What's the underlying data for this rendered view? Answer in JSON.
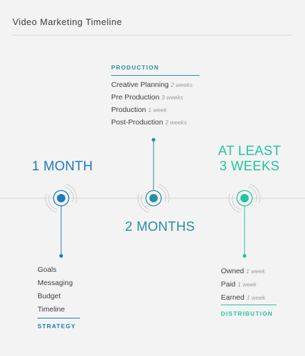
{
  "title": "Video Marketing Timeline",
  "colors": {
    "strategy": "#1a7bbf",
    "production": "#2a8da6",
    "distribution": "#22c4a0",
    "timeline": "#d6d6d6",
    "ring": "#cfcfcf"
  },
  "stages": [
    {
      "key": "strategy",
      "duration": [
        "1 MONTH"
      ],
      "label": "STRATEGY",
      "items": [
        {
          "name": "Goals",
          "duration": ""
        },
        {
          "name": "Messaging",
          "duration": ""
        },
        {
          "name": "Budget",
          "duration": ""
        },
        {
          "name": "Timeline",
          "duration": ""
        }
      ]
    },
    {
      "key": "production",
      "duration": [
        "2 MONTHS"
      ],
      "label": "PRODUCTION",
      "items": [
        {
          "name": "Creative Planning",
          "duration": "2 weeks"
        },
        {
          "name": "Pre Production",
          "duration": "3 weeks"
        },
        {
          "name": "Production",
          "duration": "1 week"
        },
        {
          "name": "Post-Production",
          "duration": "2 weeks"
        }
      ]
    },
    {
      "key": "distribution",
      "duration": [
        "AT LEAST",
        "3 WEEKS"
      ],
      "label": "DISTRIBUTION",
      "items": [
        {
          "name": "Owned",
          "duration": "1 week"
        },
        {
          "name": "Paid",
          "duration": "1 week"
        },
        {
          "name": "Earned",
          "duration": "1 week"
        }
      ]
    }
  ]
}
